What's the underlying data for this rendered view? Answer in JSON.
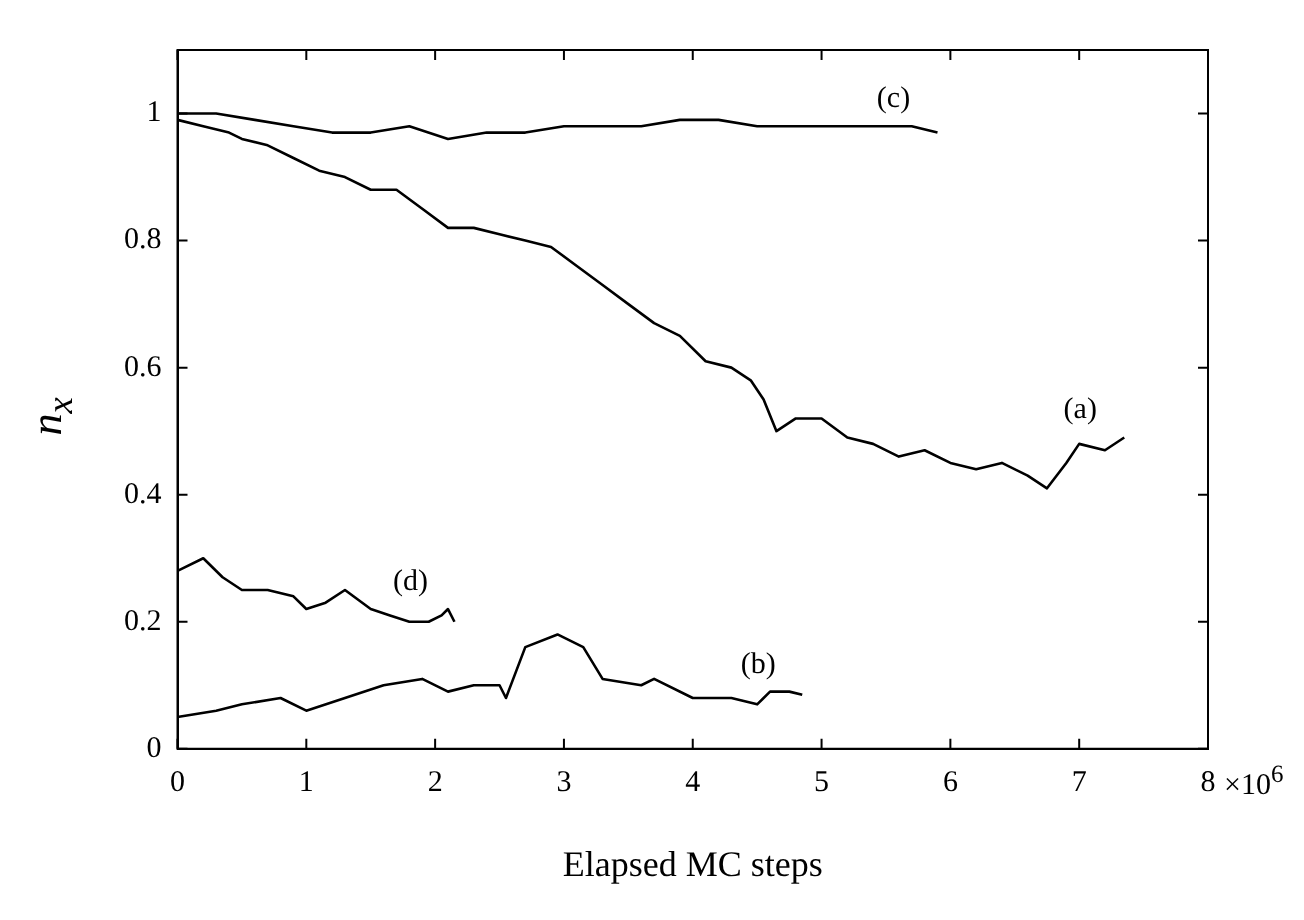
{
  "chart_data": {
    "type": "line",
    "xlabel": "Elapsed MC steps",
    "ylabel": "n$_{x}$",
    "xlim": [
      0,
      8
    ],
    "ylim": [
      0,
      1.1
    ],
    "xticks": [
      0,
      1,
      2,
      3,
      4,
      5,
      6,
      7,
      8
    ],
    "yticks": [
      0,
      0.2,
      0.4,
      0.6,
      0.8,
      1
    ],
    "grid": false,
    "legend": false,
    "marker": "none",
    "line_style": "solid",
    "series": [
      {
        "name": "(a)",
        "color": "#000000",
        "x": [
          0,
          0.2,
          0.4,
          0.5,
          0.7,
          0.9,
          1.1,
          1.3,
          1.5,
          1.7,
          1.9,
          2.1,
          2.3,
          2.5,
          2.7,
          2.9,
          3.1,
          3.3,
          3.5,
          3.7,
          3.9,
          4.1,
          4.3,
          4.45,
          4.55,
          4.65,
          4.8,
          5.0,
          5.2,
          5.4,
          5.6,
          5.8,
          6.0,
          6.2,
          6.4,
          6.6,
          6.75,
          6.9,
          7.0,
          7.2,
          7.35
        ],
        "values": [
          0.99,
          0.98,
          0.97,
          0.96,
          0.95,
          0.93,
          0.91,
          0.9,
          0.88,
          0.88,
          0.85,
          0.82,
          0.82,
          0.81,
          0.8,
          0.79,
          0.76,
          0.73,
          0.7,
          0.67,
          0.65,
          0.61,
          0.6,
          0.58,
          0.55,
          0.5,
          0.52,
          0.52,
          0.49,
          0.48,
          0.46,
          0.47,
          0.45,
          0.44,
          0.45,
          0.43,
          0.41,
          0.45,
          0.48,
          0.47,
          0.49
        ]
      },
      {
        "name": "(b)",
        "color": "#000000",
        "x": [
          0,
          0.3,
          0.5,
          0.8,
          1.0,
          1.3,
          1.6,
          1.9,
          2.1,
          2.3,
          2.5,
          2.55,
          2.7,
          2.95,
          3.15,
          3.3,
          3.6,
          3.7,
          4.0,
          4.3,
          4.5,
          4.6,
          4.75,
          4.85
        ],
        "values": [
          0.05,
          0.06,
          0.07,
          0.08,
          0.06,
          0.08,
          0.1,
          0.11,
          0.09,
          0.1,
          0.1,
          0.08,
          0.16,
          0.18,
          0.16,
          0.11,
          0.1,
          0.11,
          0.08,
          0.08,
          0.07,
          0.09,
          0.09,
          0.085
        ]
      },
      {
        "name": "(c)",
        "color": "#000000",
        "x": [
          0,
          0.3,
          0.6,
          0.9,
          1.2,
          1.5,
          1.8,
          2.1,
          2.4,
          2.7,
          3.0,
          3.3,
          3.6,
          3.9,
          4.2,
          4.5,
          4.8,
          5.1,
          5.4,
          5.7,
          5.9
        ],
        "values": [
          1.0,
          1.0,
          0.99,
          0.98,
          0.97,
          0.97,
          0.98,
          0.96,
          0.97,
          0.97,
          0.98,
          0.98,
          0.98,
          0.99,
          0.99,
          0.98,
          0.98,
          0.98,
          0.98,
          0.98,
          0.97
        ]
      },
      {
        "name": "(d)",
        "color": "#000000",
        "x": [
          0,
          0.2,
          0.35,
          0.5,
          0.7,
          0.9,
          1.0,
          1.15,
          1.3,
          1.5,
          1.65,
          1.8,
          1.95,
          2.05,
          2.1,
          2.15
        ],
        "values": [
          0.28,
          0.3,
          0.27,
          0.25,
          0.25,
          0.24,
          0.22,
          0.23,
          0.25,
          0.22,
          0.21,
          0.2,
          0.2,
          0.21,
          0.22,
          0.2
        ]
      }
    ],
    "annotations": [
      "×10$^{6}$"
    ]
  }
}
